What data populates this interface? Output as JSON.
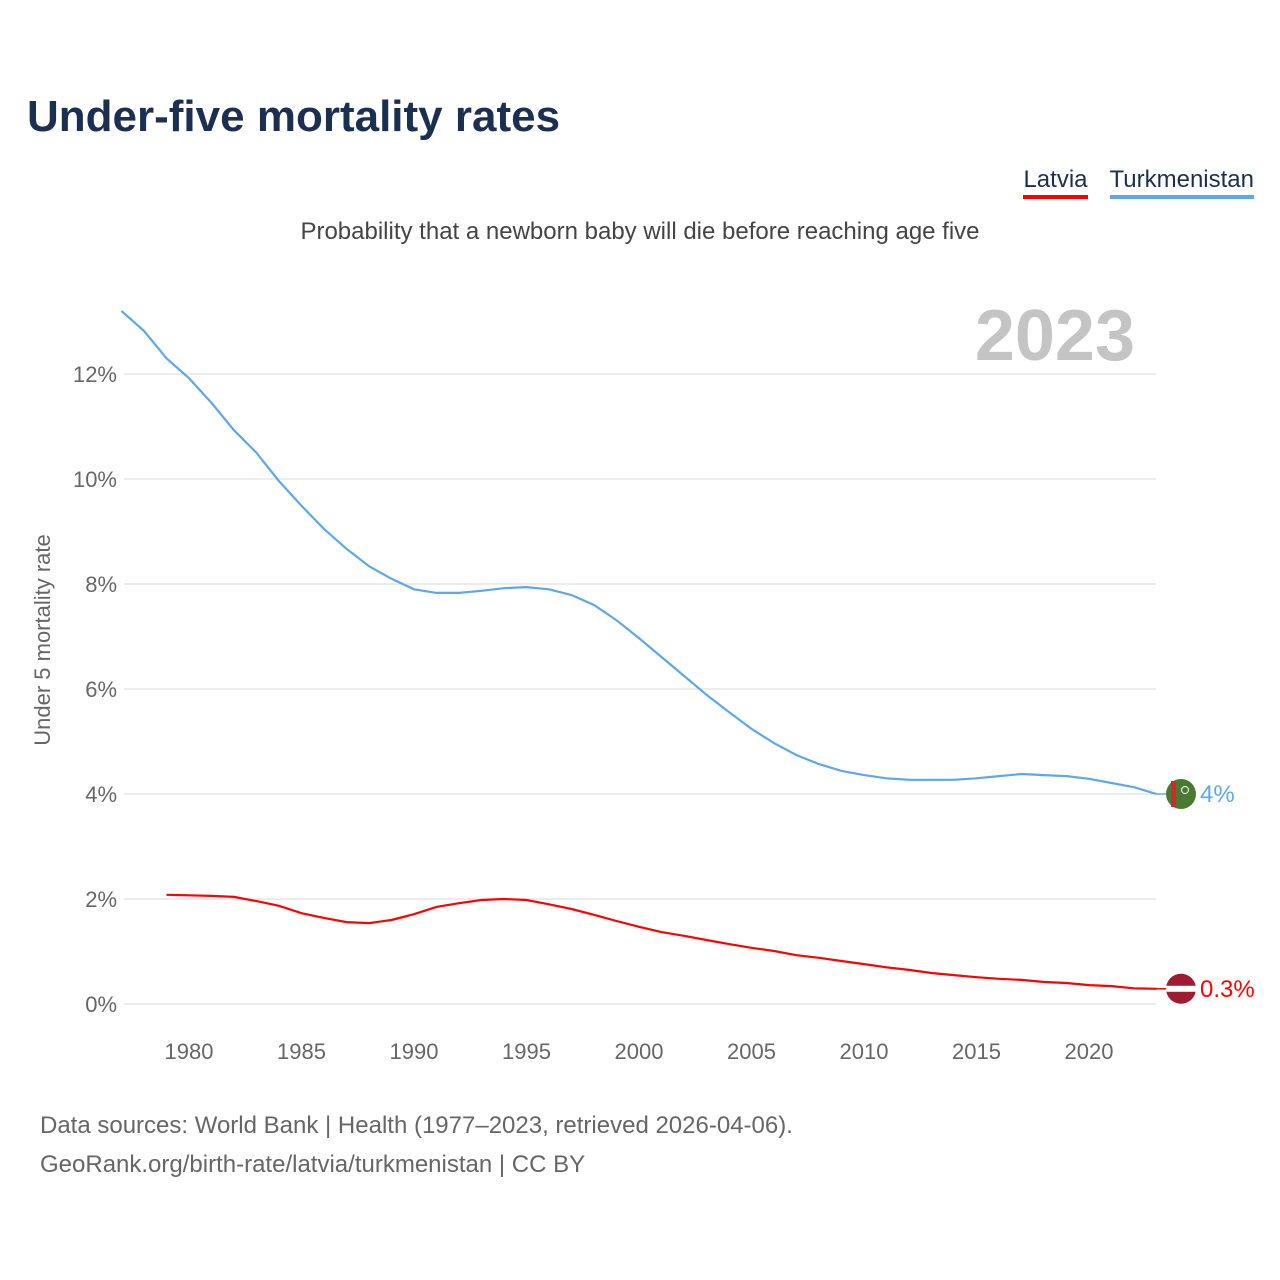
{
  "title": "Under-five mortality rates",
  "subtitle": "Probability that a newborn baby will die before reaching age five",
  "year_label": "2023",
  "footer": {
    "line1": "Data sources: World Bank | Health (1977–2023, retrieved 2026-04-06).",
    "line2": "GeoRank.org/birth-rate/latvia/turkmenistan | CC BY"
  },
  "chart_data": {
    "type": "line",
    "title": "Under-five mortality rates",
    "ylabel": "Under 5 mortality rate",
    "xlabel": "",
    "xlim": [
      1977,
      2023
    ],
    "ylim": [
      0,
      13.2
    ],
    "yticks": [
      0,
      2,
      4,
      6,
      8,
      10,
      12
    ],
    "ytick_labels": [
      "0%",
      "2%",
      "4%",
      "6%",
      "8%",
      "10%",
      "12%"
    ],
    "xticks": [
      1980,
      1985,
      1990,
      1995,
      2000,
      2005,
      2010,
      2015,
      2020
    ],
    "legend_position": "top-right",
    "grid": true,
    "series": [
      {
        "name": "Latvia",
        "color": "#ff0000",
        "end_label": "0.3%",
        "x_start": 1979,
        "values": [
          2.08,
          2.07,
          2.06,
          2.04,
          1.96,
          1.87,
          1.73,
          1.64,
          1.56,
          1.54,
          1.6,
          1.71,
          1.85,
          1.92,
          1.98,
          2.0,
          1.98,
          1.9,
          1.81,
          1.7,
          1.58,
          1.47,
          1.37,
          1.3,
          1.22,
          1.14,
          1.07,
          1.01,
          0.93,
          0.88,
          0.82,
          0.76,
          0.7,
          0.65,
          0.59,
          0.55,
          0.51,
          0.48,
          0.46,
          0.42,
          0.4,
          0.36,
          0.34,
          0.3,
          0.29
        ]
      },
      {
        "name": "Turkmenistan",
        "color": "#5ea7ea",
        "end_label": "4%",
        "x_start": 1977,
        "values": [
          13.2,
          12.82,
          12.3,
          11.92,
          11.45,
          10.93,
          10.5,
          9.96,
          9.49,
          9.05,
          8.67,
          8.34,
          8.1,
          7.9,
          7.83,
          7.83,
          7.87,
          7.92,
          7.94,
          7.9,
          7.79,
          7.6,
          7.31,
          6.97,
          6.61,
          6.25,
          5.89,
          5.56,
          5.24,
          4.97,
          4.74,
          4.57,
          4.44,
          4.36,
          4.3,
          4.27,
          4.27,
          4.27,
          4.3,
          4.34,
          4.38,
          4.36,
          4.34,
          4.29,
          4.21,
          4.13,
          4.0
        ]
      }
    ]
  }
}
